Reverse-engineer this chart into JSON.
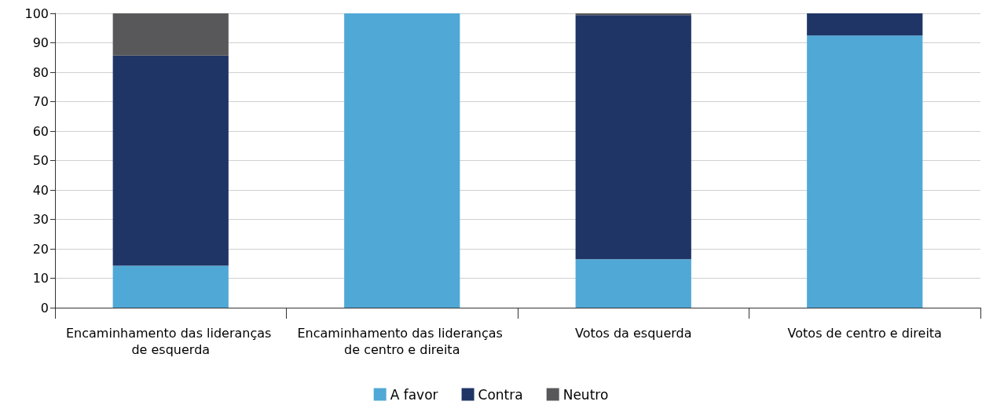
{
  "chart_data": {
    "type": "bar",
    "stacked": true,
    "categories": [
      "Encaminhamento das lideranças de esquerda",
      "Encaminhamento das lideranças de centro e direita",
      "Votos da esquerda",
      "Votos de centro e direita"
    ],
    "series": [
      {
        "name": "A favor",
        "color": "#50a8d6",
        "values": [
          14.3,
          100,
          16.5,
          92.5
        ]
      },
      {
        "name": "Contra",
        "color": "#1f3566",
        "values": [
          71.4,
          0,
          82.9,
          7.5
        ]
      },
      {
        "name": "Neutro",
        "color": "#58585a",
        "values": [
          14.3,
          0,
          0.6,
          0
        ]
      }
    ],
    "ylim": [
      0,
      100
    ],
    "yticks": [
      0,
      10,
      20,
      30,
      40,
      50,
      60,
      70,
      80,
      90,
      100
    ],
    "grid": "y",
    "legend": "bottom"
  }
}
